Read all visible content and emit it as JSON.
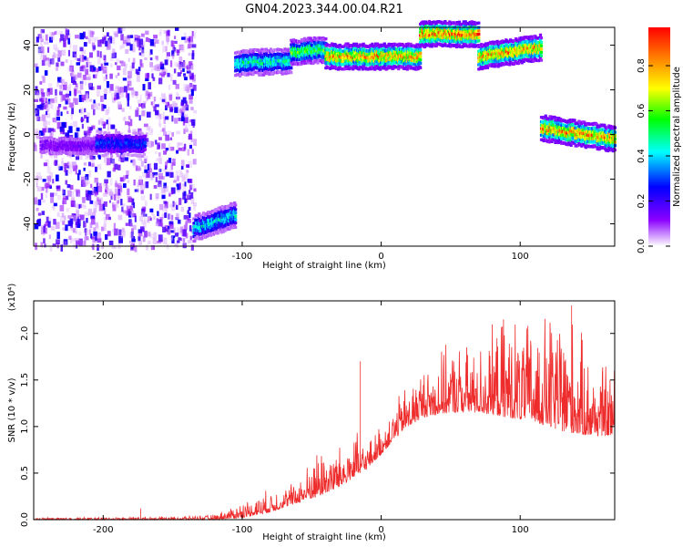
{
  "title": "GN04.2023.344.00.04.R21",
  "chart_data": [
    {
      "type": "heatmap",
      "name": "spectrogram",
      "xlabel": "Height of straight line (km)",
      "ylabel": "Frequency (Hz)",
      "xlim": [
        -250,
        168
      ],
      "ylim": [
        -50,
        48
      ],
      "xticks": [
        -200,
        -100,
        0,
        100
      ],
      "yticks": [
        -40,
        -20,
        0,
        20,
        40
      ],
      "colorbar": {
        "label": "Normalized spectral amplitude",
        "range": [
          0.0,
          0.97
        ],
        "ticks": [
          0.0,
          0.2,
          0.4,
          0.6,
          0.8
        ],
        "colormap": [
          "#ffffff",
          "#8b00ff",
          "#0000ff",
          "#00ffff",
          "#00ff00",
          "#ffff00",
          "#ff8000",
          "#ff0000"
        ]
      },
      "noise_region": {
        "x": [
          -250,
          -135
        ],
        "y": [
          -50,
          48
        ],
        "level": 0.15
      },
      "segments": [
        {
          "x": [
            -245,
            -205
          ],
          "y_start": -5,
          "y_end": -5,
          "amplitude": 0.15
        },
        {
          "x": [
            -205,
            -170
          ],
          "y_start": -4,
          "y_end": -4,
          "amplitude": 0.3
        },
        {
          "x": [
            -135,
            -105
          ],
          "y_start": -42,
          "y_end": -36,
          "amplitude": 0.45
        },
        {
          "x": [
            -105,
            -65
          ],
          "y_start": 32,
          "y_end": 33,
          "amplitude": 0.5
        },
        {
          "x": [
            -65,
            -40
          ],
          "y_start": 37,
          "y_end": 38,
          "amplitude": 0.6
        },
        {
          "x": [
            -40,
            28
          ],
          "y_start": 35,
          "y_end": 35,
          "amplitude": 0.85
        },
        {
          "x": [
            28,
            70
          ],
          "y_start": 45,
          "y_end": 45,
          "amplitude": 0.9
        },
        {
          "x": [
            70,
            115
          ],
          "y_start": 35,
          "y_end": 39,
          "amplitude": 0.85
        },
        {
          "x": [
            115,
            168
          ],
          "y_start": 3,
          "y_end": -2,
          "amplitude": 0.85
        }
      ]
    },
    {
      "type": "line",
      "name": "snr",
      "xlabel": "Height of straight line (km)",
      "ylabel": "SNR (10 * v/v)",
      "multiplier_label": "(x10⁴)",
      "xlim": [
        -250,
        168
      ],
      "ylim": [
        0,
        2.35
      ],
      "xticks": [
        -200,
        -100,
        0,
        100
      ],
      "yticks": [
        0.0,
        0.5,
        1.0,
        1.5,
        2.0
      ],
      "color": "#ee2c2c",
      "envelope": {
        "x": [
          -250,
          -150,
          -120,
          -100,
          -80,
          -60,
          -45,
          -30,
          -20,
          -10,
          0,
          15,
          30,
          50,
          70,
          90,
          110,
          130,
          150,
          168
        ],
        "baseline": [
          0.0,
          0.0,
          0.0,
          0.02,
          0.08,
          0.18,
          0.25,
          0.35,
          0.45,
          0.55,
          0.7,
          0.95,
          1.1,
          1.15,
          1.15,
          1.1,
          1.05,
          0.95,
          0.9,
          0.9
        ],
        "peak": [
          0.02,
          0.03,
          0.05,
          0.18,
          0.3,
          0.4,
          0.75,
          0.75,
          0.9,
          0.8,
          1.0,
          1.35,
          1.6,
          1.8,
          1.8,
          2.1,
          2.0,
          2.25,
          1.7,
          1.6
        ]
      },
      "spikes": [
        {
          "x": -173,
          "y": 0.12
        },
        {
          "x": -15,
          "y": 1.7
        },
        {
          "x": 88,
          "y": 2.15
        },
        {
          "x": 137,
          "y": 2.3
        }
      ]
    }
  ]
}
